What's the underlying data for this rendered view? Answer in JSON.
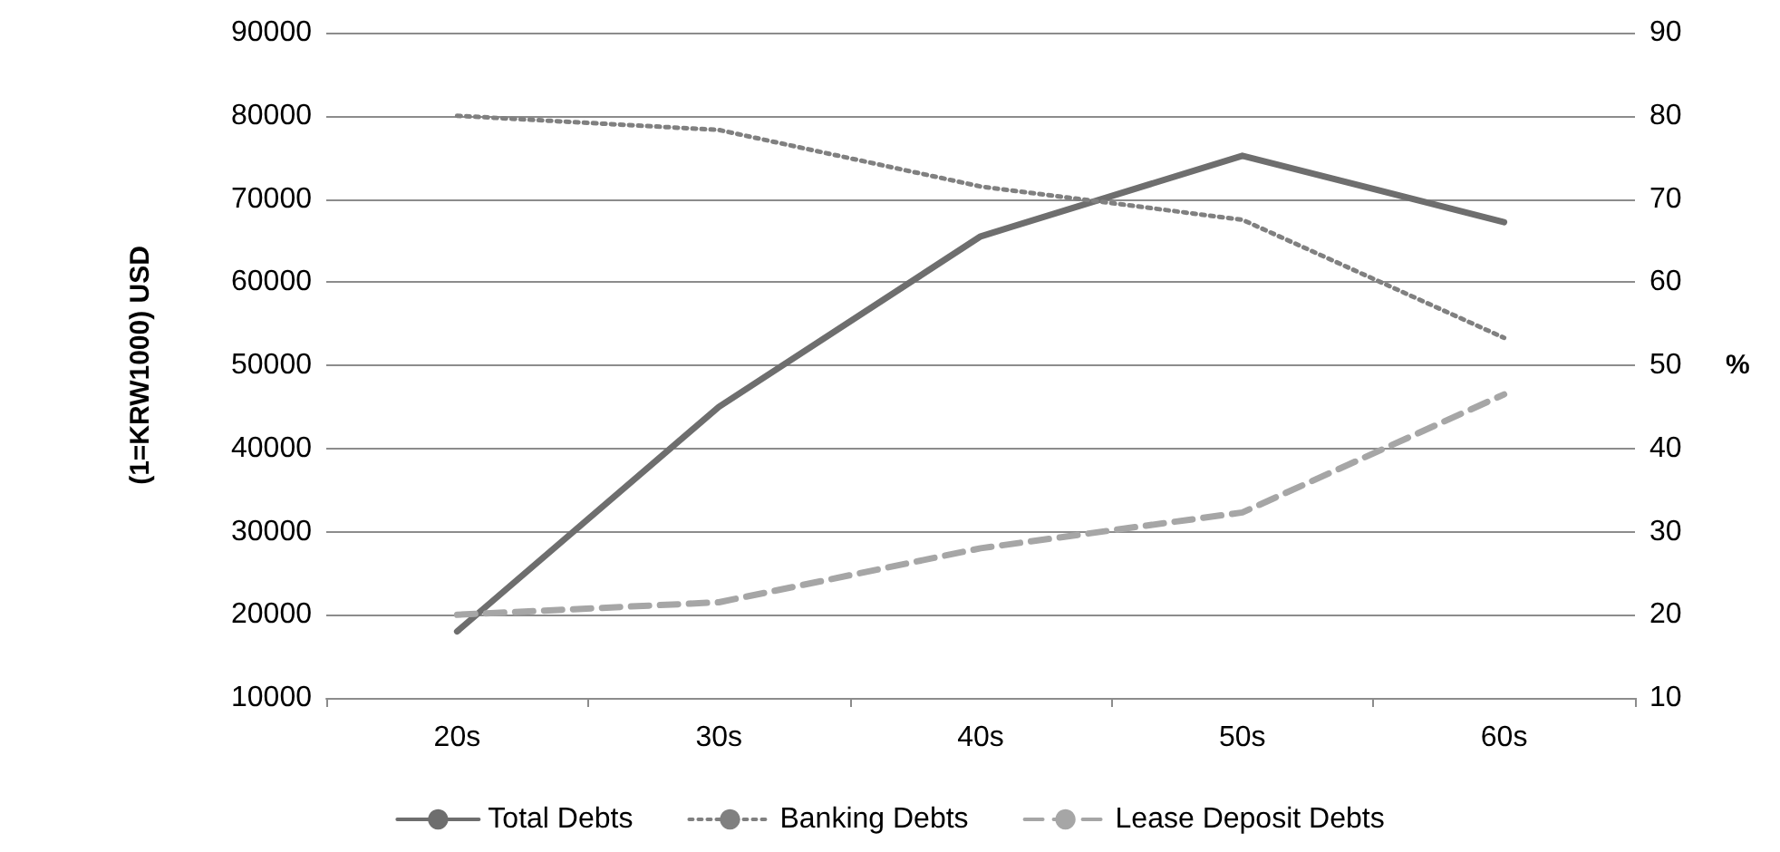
{
  "chart_data": {
    "type": "line",
    "ylabel": "(1=KRW1000) USD",
    "y2label": "%",
    "categories": [
      "20s",
      "30s",
      "40s",
      "50s",
      "60s"
    ],
    "series": [
      {
        "name": "Total Debts",
        "color": "#6e6e6e",
        "line_style": "solid",
        "values": [
          18000,
          45000,
          65500,
          75200,
          67200
        ]
      },
      {
        "name": "Banking Debts",
        "color": "#808080",
        "line_style": "dotted",
        "axis": "y2",
        "values": [
          80,
          78.3,
          71.5,
          67.5,
          53.3
        ]
      },
      {
        "name": "Lease Deposit Debts",
        "color": "#a6a6a6",
        "line_style": "dashed",
        "axis": "y2",
        "values": [
          20,
          21.5,
          28,
          32.3,
          46.5
        ]
      }
    ],
    "ylim": [
      10000,
      90000
    ],
    "yticks": [
      10000,
      20000,
      30000,
      40000,
      50000,
      60000,
      70000,
      80000,
      90000
    ],
    "y2lim": [
      10,
      90
    ],
    "y2ticks": [
      10,
      20,
      30,
      40,
      50,
      60,
      70,
      80,
      90
    ],
    "grid": "y",
    "legend": "bottom",
    "marker": "none"
  }
}
